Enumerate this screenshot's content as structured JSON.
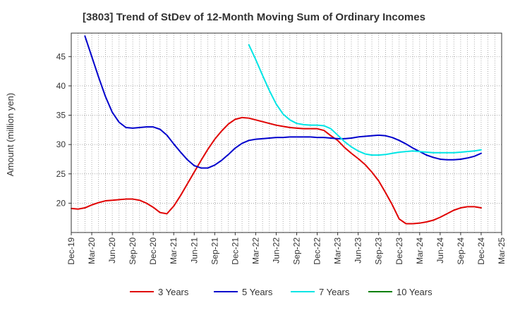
{
  "chart_data": {
    "type": "line",
    "title": "[3803]  Trend of StDev of 12-Month Moving Sum of Ordinary Incomes",
    "ylabel": "Amount (million yen)",
    "xlabel": "",
    "ylim": [
      15,
      49
    ],
    "yticks": [
      20,
      25,
      30,
      35,
      40,
      45
    ],
    "xlim": [
      "2019-12",
      "2025-03"
    ],
    "xticks": [
      "Dec-19",
      "Mar-20",
      "Jun-20",
      "Sep-20",
      "Dec-20",
      "Mar-21",
      "Jun-21",
      "Sep-21",
      "Dec-21",
      "Mar-22",
      "Jun-22",
      "Sep-22",
      "Dec-22",
      "Mar-23",
      "Jun-23",
      "Sep-23",
      "Dec-23",
      "Mar-24",
      "Jun-24",
      "Sep-24",
      "Dec-24",
      "Mar-25"
    ],
    "grid": true,
    "legend_position": "bottom",
    "series": [
      {
        "name": "3 Years",
        "color": "#e00000",
        "points": [
          [
            "2019-12",
            19.1
          ],
          [
            "2020-01",
            19.0
          ],
          [
            "2020-02",
            19.2
          ],
          [
            "2020-03",
            19.7
          ],
          [
            "2020-04",
            20.1
          ],
          [
            "2020-05",
            20.4
          ],
          [
            "2020-06",
            20.5
          ],
          [
            "2020-07",
            20.6
          ],
          [
            "2020-08",
            20.7
          ],
          [
            "2020-09",
            20.7
          ],
          [
            "2020-10",
            20.5
          ],
          [
            "2020-11",
            20.0
          ],
          [
            "2020-12",
            19.3
          ],
          [
            "2021-01",
            18.4
          ],
          [
            "2021-02",
            18.2
          ],
          [
            "2021-03",
            19.5
          ],
          [
            "2021-04",
            21.3
          ],
          [
            "2021-05",
            23.3
          ],
          [
            "2021-06",
            25.3
          ],
          [
            "2021-07",
            27.3
          ],
          [
            "2021-08",
            29.2
          ],
          [
            "2021-09",
            30.9
          ],
          [
            "2021-10",
            32.3
          ],
          [
            "2021-11",
            33.5
          ],
          [
            "2021-12",
            34.3
          ],
          [
            "2022-01",
            34.6
          ],
          [
            "2022-02",
            34.5
          ],
          [
            "2022-03",
            34.2
          ],
          [
            "2022-04",
            33.9
          ],
          [
            "2022-05",
            33.6
          ],
          [
            "2022-06",
            33.3
          ],
          [
            "2022-07",
            33.1
          ],
          [
            "2022-08",
            32.9
          ],
          [
            "2022-09",
            32.8
          ],
          [
            "2022-10",
            32.7
          ],
          [
            "2022-11",
            32.7
          ],
          [
            "2022-12",
            32.7
          ],
          [
            "2023-01",
            32.4
          ],
          [
            "2023-02",
            31.5
          ],
          [
            "2023-03",
            30.7
          ],
          [
            "2023-04",
            29.5
          ],
          [
            "2023-05",
            28.5
          ],
          [
            "2023-06",
            27.6
          ],
          [
            "2023-07",
            26.6
          ],
          [
            "2023-08",
            25.3
          ],
          [
            "2023-09",
            23.8
          ],
          [
            "2023-10",
            21.8
          ],
          [
            "2023-11",
            19.7
          ],
          [
            "2023-12",
            17.3
          ],
          [
            "2024-01",
            16.5
          ],
          [
            "2024-02",
            16.5
          ],
          [
            "2024-03",
            16.6
          ],
          [
            "2024-04",
            16.8
          ],
          [
            "2024-05",
            17.1
          ],
          [
            "2024-06",
            17.6
          ],
          [
            "2024-07",
            18.2
          ],
          [
            "2024-08",
            18.8
          ],
          [
            "2024-09",
            19.2
          ],
          [
            "2024-10",
            19.4
          ],
          [
            "2024-11",
            19.4
          ],
          [
            "2024-12",
            19.2
          ]
        ]
      },
      {
        "name": "5 Years",
        "color": "#0000cc",
        "points": [
          [
            "2020-02",
            48.5
          ],
          [
            "2020-03",
            45.0
          ],
          [
            "2020-04",
            41.5
          ],
          [
            "2020-05",
            38.2
          ],
          [
            "2020-06",
            35.5
          ],
          [
            "2020-07",
            33.8
          ],
          [
            "2020-08",
            32.9
          ],
          [
            "2020-09",
            32.8
          ],
          [
            "2020-10",
            32.9
          ],
          [
            "2020-11",
            33.0
          ],
          [
            "2020-12",
            33.0
          ],
          [
            "2021-01",
            32.6
          ],
          [
            "2021-02",
            31.6
          ],
          [
            "2021-03",
            30.1
          ],
          [
            "2021-04",
            28.7
          ],
          [
            "2021-05",
            27.4
          ],
          [
            "2021-06",
            26.4
          ],
          [
            "2021-07",
            26.0
          ],
          [
            "2021-08",
            26.0
          ],
          [
            "2021-09",
            26.5
          ],
          [
            "2021-10",
            27.3
          ],
          [
            "2021-11",
            28.3
          ],
          [
            "2021-12",
            29.4
          ],
          [
            "2022-01",
            30.2
          ],
          [
            "2022-02",
            30.7
          ],
          [
            "2022-03",
            30.9
          ],
          [
            "2022-04",
            31.0
          ],
          [
            "2022-05",
            31.1
          ],
          [
            "2022-06",
            31.2
          ],
          [
            "2022-07",
            31.2
          ],
          [
            "2022-08",
            31.3
          ],
          [
            "2022-09",
            31.3
          ],
          [
            "2022-10",
            31.3
          ],
          [
            "2022-11",
            31.3
          ],
          [
            "2022-12",
            31.2
          ],
          [
            "2023-01",
            31.2
          ],
          [
            "2023-02",
            31.1
          ],
          [
            "2023-03",
            31.0
          ],
          [
            "2023-04",
            31.0
          ],
          [
            "2023-05",
            31.1
          ],
          [
            "2023-06",
            31.3
          ],
          [
            "2023-07",
            31.4
          ],
          [
            "2023-08",
            31.5
          ],
          [
            "2023-09",
            31.6
          ],
          [
            "2023-10",
            31.5
          ],
          [
            "2023-11",
            31.2
          ],
          [
            "2023-12",
            30.7
          ],
          [
            "2024-01",
            30.1
          ],
          [
            "2024-02",
            29.4
          ],
          [
            "2024-03",
            28.8
          ],
          [
            "2024-04",
            28.2
          ],
          [
            "2024-05",
            27.8
          ],
          [
            "2024-06",
            27.5
          ],
          [
            "2024-07",
            27.4
          ],
          [
            "2024-08",
            27.4
          ],
          [
            "2024-09",
            27.5
          ],
          [
            "2024-10",
            27.7
          ],
          [
            "2024-11",
            28.0
          ],
          [
            "2024-12",
            28.5
          ]
        ]
      },
      {
        "name": "7 Years",
        "color": "#00e5e5",
        "points": [
          [
            "2022-02",
            47.0
          ],
          [
            "2022-03",
            44.5
          ],
          [
            "2022-04",
            41.8
          ],
          [
            "2022-05",
            39.2
          ],
          [
            "2022-06",
            36.9
          ],
          [
            "2022-07",
            35.2
          ],
          [
            "2022-08",
            34.2
          ],
          [
            "2022-09",
            33.6
          ],
          [
            "2022-10",
            33.4
          ],
          [
            "2022-11",
            33.3
          ],
          [
            "2022-12",
            33.3
          ],
          [
            "2023-01",
            33.2
          ],
          [
            "2023-02",
            32.7
          ],
          [
            "2023-03",
            31.6
          ],
          [
            "2023-04",
            30.5
          ],
          [
            "2023-05",
            29.6
          ],
          [
            "2023-06",
            28.9
          ],
          [
            "2023-07",
            28.4
          ],
          [
            "2023-08",
            28.2
          ],
          [
            "2023-09",
            28.2
          ],
          [
            "2023-10",
            28.3
          ],
          [
            "2023-11",
            28.5
          ],
          [
            "2023-12",
            28.7
          ],
          [
            "2024-01",
            28.8
          ],
          [
            "2024-02",
            28.9
          ],
          [
            "2024-03",
            28.8
          ],
          [
            "2024-04",
            28.7
          ],
          [
            "2024-05",
            28.6
          ],
          [
            "2024-06",
            28.6
          ],
          [
            "2024-07",
            28.6
          ],
          [
            "2024-08",
            28.6
          ],
          [
            "2024-09",
            28.7
          ],
          [
            "2024-10",
            28.8
          ],
          [
            "2024-11",
            28.9
          ],
          [
            "2024-12",
            29.1
          ]
        ]
      },
      {
        "name": "10 Years",
        "color": "#008000",
        "points": []
      }
    ]
  }
}
